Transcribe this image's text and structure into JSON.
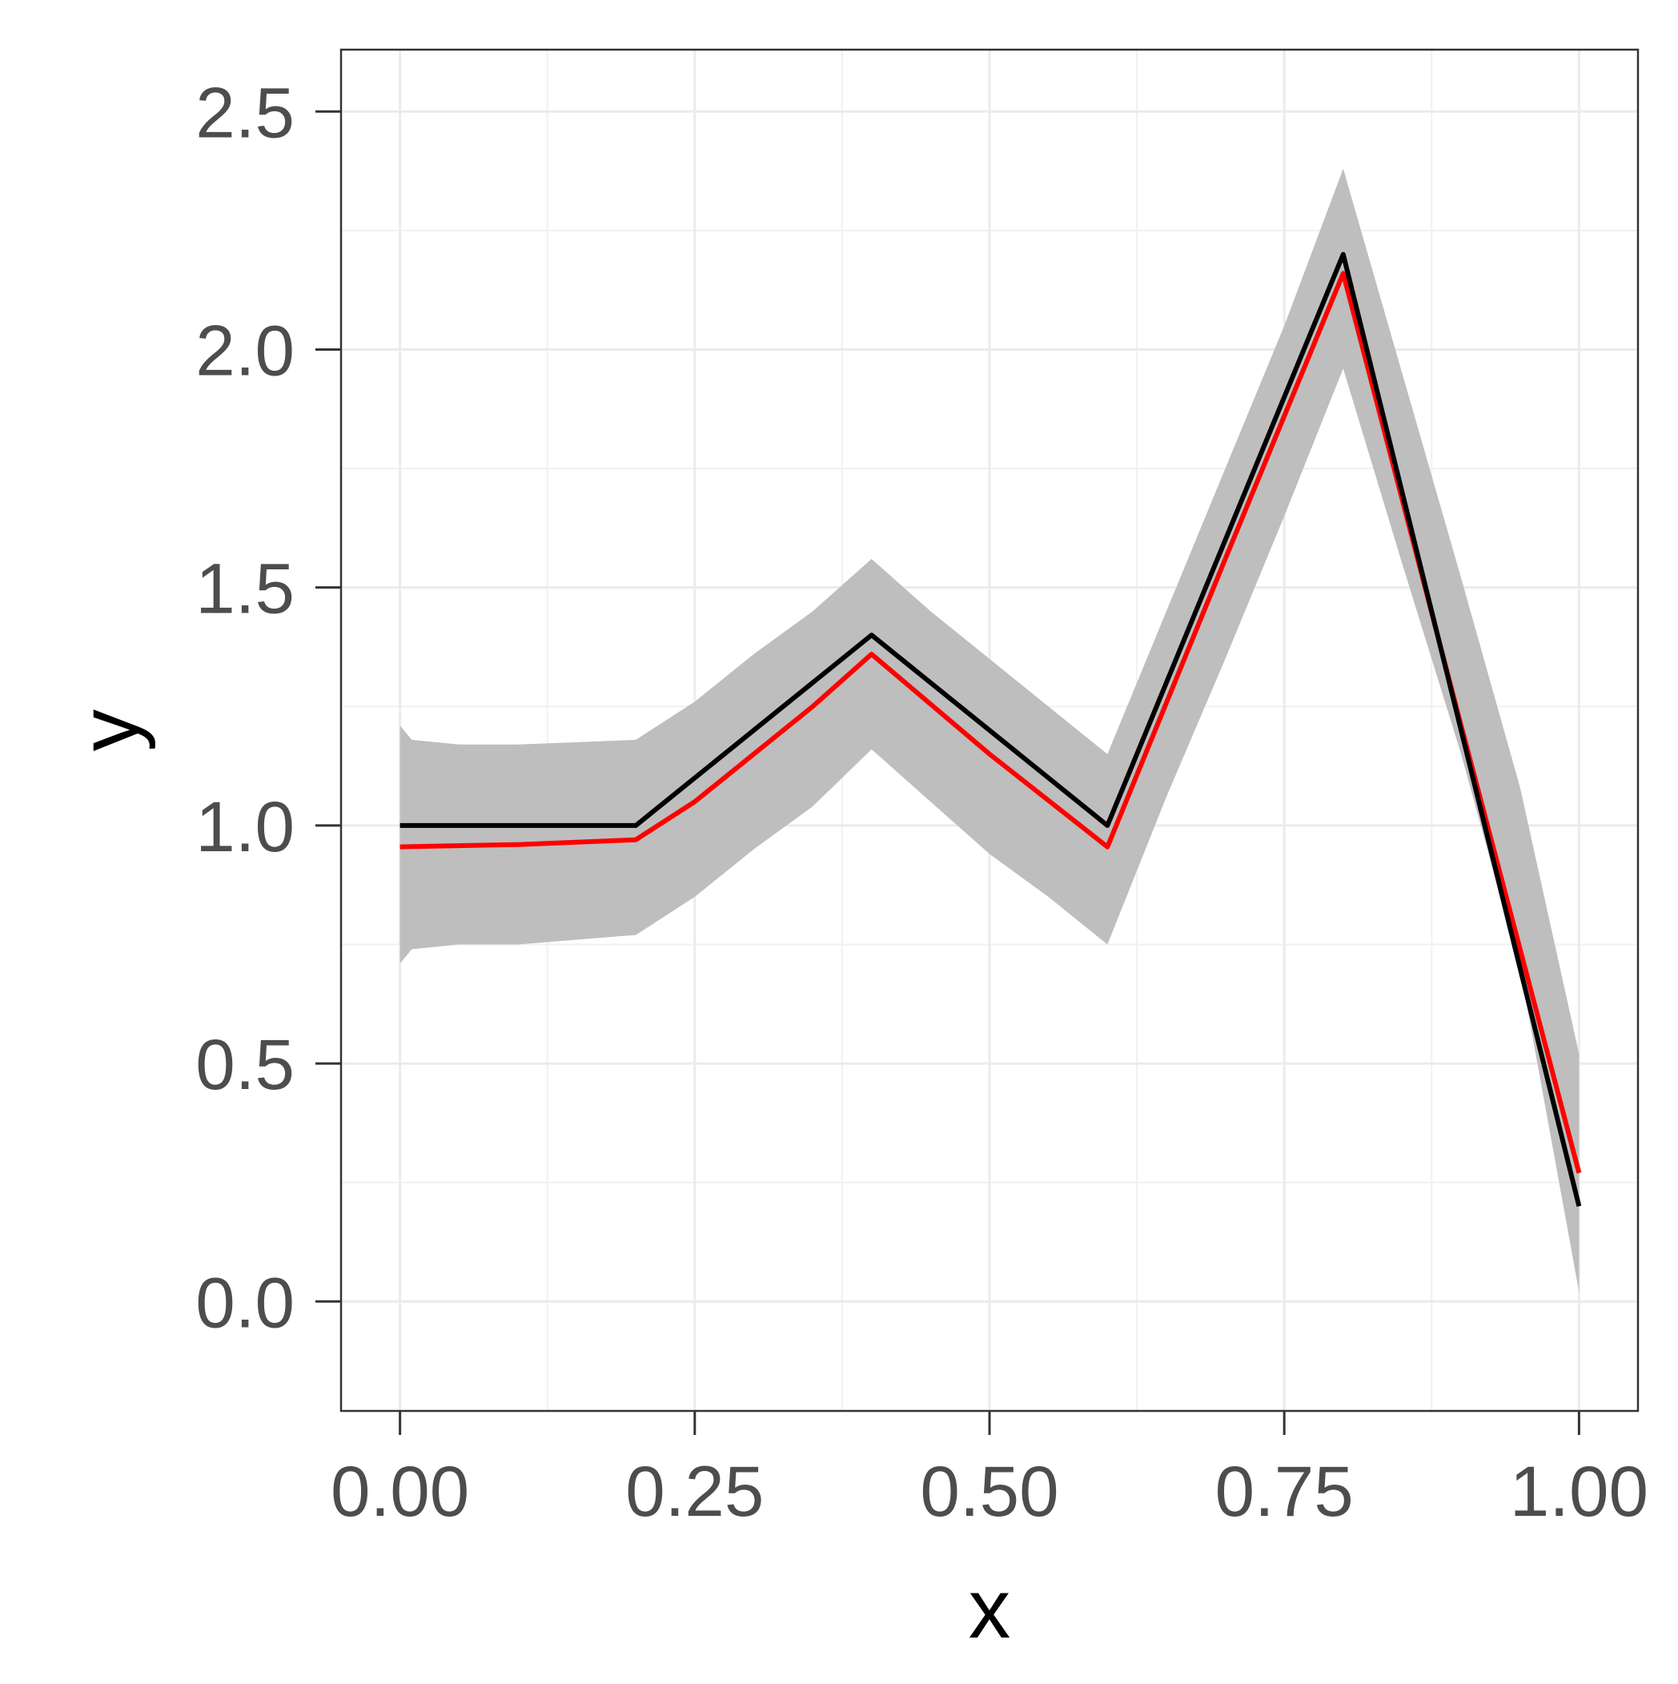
{
  "chart_data": {
    "type": "line",
    "title": "",
    "xlabel": "x",
    "ylabel": "y",
    "xlim": [
      -0.05,
      1.05
    ],
    "ylim": [
      -0.23,
      2.63
    ],
    "x_ticks": [
      0,
      0.25,
      0.5,
      0.75,
      1
    ],
    "x_tick_labels": [
      "0.00",
      "0.25",
      "0.50",
      "0.75",
      "1.00"
    ],
    "y_ticks": [
      0,
      0.5,
      1,
      1.5,
      2,
      2.5
    ],
    "y_tick_labels": [
      "0.0",
      "0.5",
      "1.0",
      "1.5",
      "2.0",
      "2.5"
    ],
    "grid": true,
    "legend": "none",
    "ribbon": {
      "x": [
        0,
        0.01,
        0.05,
        0.1,
        0.15,
        0.2,
        0.25,
        0.3,
        0.35,
        0.4,
        0.45,
        0.5,
        0.55,
        0.6,
        0.65,
        0.7,
        0.75,
        0.8,
        0.85,
        0.9,
        0.95,
        1.0
      ],
      "lower": [
        0.71,
        0.74,
        0.75,
        0.75,
        0.76,
        0.77,
        0.85,
        0.95,
        1.04,
        1.16,
        1.05,
        0.94,
        0.85,
        0.75,
        1.06,
        1.35,
        1.65,
        1.96,
        1.55,
        1.15,
        0.7,
        0.02
      ],
      "upper": [
        1.21,
        1.18,
        1.17,
        1.17,
        1.175,
        1.18,
        1.26,
        1.36,
        1.45,
        1.56,
        1.45,
        1.35,
        1.25,
        1.15,
        1.45,
        1.75,
        2.05,
        2.38,
        1.95,
        1.52,
        1.08,
        0.52
      ],
      "color": "#bebebe"
    },
    "series": [
      {
        "color": "#000000",
        "x": [
          0,
          0.2,
          0.4,
          0.6,
          0.8,
          1.0
        ],
        "y": [
          1.0,
          1.0,
          1.4,
          1.0,
          2.2,
          0.2
        ]
      },
      {
        "color": "#ff0000",
        "x": [
          0,
          0.1,
          0.2,
          0.25,
          0.35,
          0.4,
          0.5,
          0.6,
          0.7,
          0.8,
          0.9,
          1.0
        ],
        "y": [
          0.955,
          0.96,
          0.97,
          1.05,
          1.25,
          1.36,
          1.15,
          0.955,
          1.56,
          2.16,
          1.21,
          0.27
        ]
      }
    ]
  }
}
